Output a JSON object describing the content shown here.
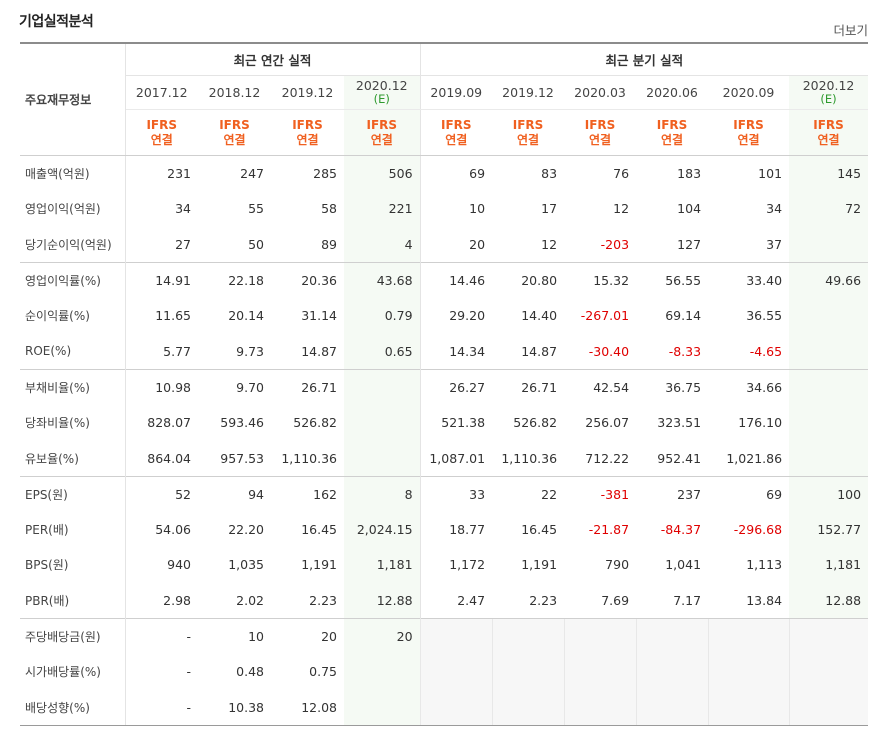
{
  "title": "기업실적분석",
  "more_label": "더보기",
  "corner_label": "주요재무정보",
  "annual_header": "최근 연간 실적",
  "quarter_header": "최근 분기 실적",
  "annual_periods": [
    {
      "line1": "2017.12",
      "line2": ""
    },
    {
      "line1": "2018.12",
      "line2": ""
    },
    {
      "line1": "2019.12",
      "line2": ""
    },
    {
      "line1": "2020.12",
      "line2": "(E)"
    }
  ],
  "quarter_periods": [
    {
      "line1": "2019.09",
      "line2": ""
    },
    {
      "line1": "2019.12",
      "line2": ""
    },
    {
      "line1": "2020.03",
      "line2": ""
    },
    {
      "line1": "2020.06",
      "line2": ""
    },
    {
      "line1": "2020.09",
      "line2": ""
    },
    {
      "line1": "2020.12",
      "line2": "(E)"
    }
  ],
  "ifrs_line1": "IFRS",
  "ifrs_line2": "연결",
  "rows": [
    {
      "label": "매출액(억원)",
      "values": [
        "231",
        "247",
        "285",
        "506",
        "69",
        "83",
        "76",
        "183",
        "101",
        "145"
      ]
    },
    {
      "label": "영업이익(억원)",
      "values": [
        "34",
        "55",
        "58",
        "221",
        "10",
        "17",
        "12",
        "104",
        "34",
        "72"
      ]
    },
    {
      "label": "당기순이익(억원)",
      "values": [
        "27",
        "50",
        "89",
        "4",
        "20",
        "12",
        "-203",
        "127",
        "37",
        ""
      ]
    },
    {
      "label": "영업이익률(%)",
      "values": [
        "14.91",
        "22.18",
        "20.36",
        "43.68",
        "14.46",
        "20.80",
        "15.32",
        "56.55",
        "33.40",
        "49.66"
      ]
    },
    {
      "label": "순이익률(%)",
      "values": [
        "11.65",
        "20.14",
        "31.14",
        "0.79",
        "29.20",
        "14.40",
        "-267.01",
        "69.14",
        "36.55",
        ""
      ]
    },
    {
      "label": "ROE(%)",
      "values": [
        "5.77",
        "9.73",
        "14.87",
        "0.65",
        "14.34",
        "14.87",
        "-30.40",
        "-8.33",
        "-4.65",
        ""
      ]
    },
    {
      "label": "부채비율(%)",
      "values": [
        "10.98",
        "9.70",
        "26.71",
        "",
        "26.27",
        "26.71",
        "42.54",
        "36.75",
        "34.66",
        ""
      ]
    },
    {
      "label": "당좌비율(%)",
      "values": [
        "828.07",
        "593.46",
        "526.82",
        "",
        "521.38",
        "526.82",
        "256.07",
        "323.51",
        "176.10",
        ""
      ]
    },
    {
      "label": "유보율(%)",
      "values": [
        "864.04",
        "957.53",
        "1,110.36",
        "",
        "1,087.01",
        "1,110.36",
        "712.22",
        "952.41",
        "1,021.86",
        ""
      ]
    },
    {
      "label": "EPS(원)",
      "values": [
        "52",
        "94",
        "162",
        "8",
        "33",
        "22",
        "-381",
        "237",
        "69",
        "100"
      ]
    },
    {
      "label": "PER(배)",
      "values": [
        "54.06",
        "22.20",
        "16.45",
        "2,024.15",
        "18.77",
        "16.45",
        "-21.87",
        "-84.37",
        "-296.68",
        "152.77"
      ]
    },
    {
      "label": "BPS(원)",
      "values": [
        "940",
        "1,035",
        "1,191",
        "1,181",
        "1,172",
        "1,191",
        "790",
        "1,041",
        "1,113",
        "1,181"
      ]
    },
    {
      "label": "PBR(배)",
      "values": [
        "2.98",
        "2.02",
        "2.23",
        "12.88",
        "2.47",
        "2.23",
        "7.69",
        "7.17",
        "13.84",
        "12.88"
      ]
    },
    {
      "label": "주당배당금(원)",
      "values": [
        "-",
        "10",
        "20",
        "20",
        "",
        "",
        "",
        "",
        "",
        ""
      ]
    },
    {
      "label": "시가배당률(%)",
      "values": [
        "-",
        "0.48",
        "0.75",
        "",
        "",
        "",
        "",
        "",
        "",
        ""
      ]
    },
    {
      "label": "배당성향(%)",
      "values": [
        "-",
        "10.38",
        "12.08",
        "",
        "",
        "",
        "",
        "",
        "",
        ""
      ]
    }
  ]
}
